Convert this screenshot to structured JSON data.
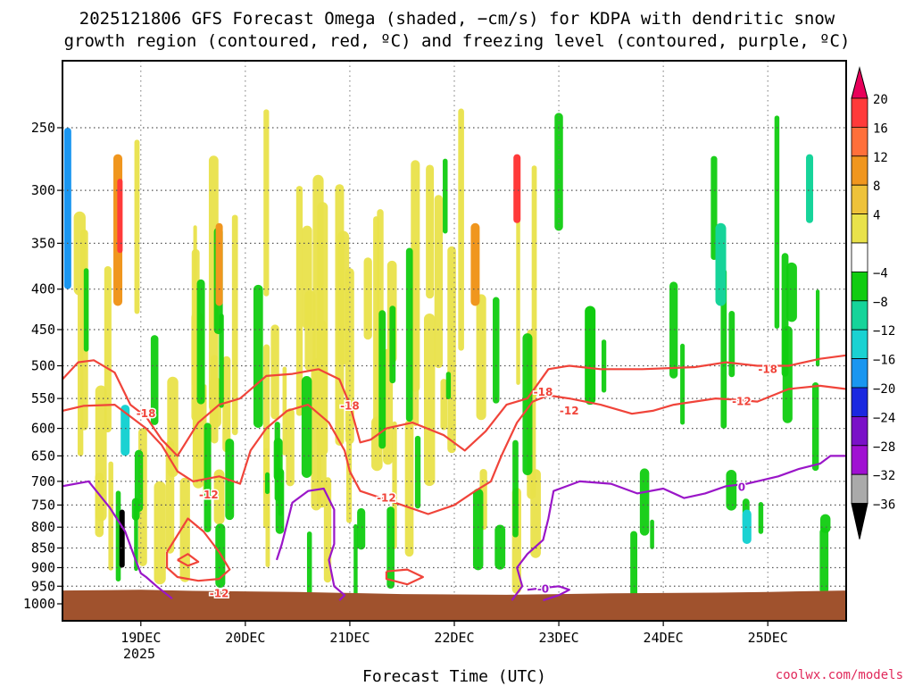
{
  "chart_data": {
    "type": "heatmap",
    "title_line1": "2025121806 GFS Forecast Omega (shaded, −cm/s) for KDPA with dendritic snow",
    "title_line2": "growth region (contoured, red, ºC) and freezing level (contoured, purple, ºC)",
    "xlabel": "Forecast Time (UTC)",
    "ylabel": "",
    "source": "coolwx.com/models",
    "pressure_levels": [
      250,
      300,
      350,
      400,
      450,
      500,
      550,
      600,
      650,
      700,
      750,
      800,
      850,
      900,
      950,
      1000
    ],
    "y_tick_labels": [
      "250",
      "300",
      "350",
      "400",
      "450",
      "500",
      "550",
      "600",
      "650",
      "700",
      "750",
      "800",
      "850",
      "900",
      "950",
      "1000"
    ],
    "ylim": [
      200,
      1025
    ],
    "x_range_days": [
      18.25,
      25.75
    ],
    "x_ticks": [
      {
        "day": 19,
        "label": "19DEC"
      },
      {
        "day": 20,
        "label": "20DEC"
      },
      {
        "day": 21,
        "label": "21DEC"
      },
      {
        "day": 22,
        "label": "22DEC"
      },
      {
        "day": 23,
        "label": "23DEC"
      },
      {
        "day": 24,
        "label": "24DEC"
      },
      {
        "day": 25,
        "label": "25DEC"
      }
    ],
    "x_year_label": "2025",
    "colorbar": {
      "labels": [
        "20",
        "16",
        "12",
        "8",
        "4",
        "−4",
        "−8",
        "−12",
        "−16",
        "−20",
        "−24",
        "−28",
        "−32",
        "−36"
      ],
      "colors": [
        "#e8005a",
        "#ff3a3a",
        "#ff6f3a",
        "#f0961e",
        "#eec23a",
        "#e9e24a",
        "#ffffff",
        "#10cc10",
        "#16d49a",
        "#1ad2d2",
        "#1a96f0",
        "#1a28e0",
        "#7a10c8",
        "#a010d2",
        "#aaaaaa",
        "#000000"
      ]
    },
    "contour_labels": {
      "dgz_warm": "-12",
      "dgz_cold": "-18",
      "freezing": "0",
      "freezing_lower": "-0"
    },
    "contours": {
      "minus18_upper": [
        [
          18.25,
          520
        ],
        [
          18.4,
          495
        ],
        [
          18.55,
          492
        ],
        [
          18.75,
          510
        ],
        [
          18.9,
          560
        ],
        [
          19.05,
          580
        ],
        [
          19.2,
          620
        ],
        [
          19.35,
          650
        ],
        [
          19.55,
          590
        ],
        [
          19.75,
          560
        ],
        [
          19.95,
          550
        ],
        [
          20.2,
          515
        ],
        [
          20.45,
          512
        ],
        [
          20.7,
          505
        ],
        [
          20.9,
          520
        ],
        [
          21.0,
          560
        ],
        [
          21.1,
          625
        ],
        [
          21.2,
          620
        ],
        [
          21.35,
          600
        ],
        [
          21.6,
          590
        ],
        [
          21.9,
          612
        ],
        [
          22.1,
          640
        ],
        [
          22.3,
          605
        ],
        [
          22.5,
          560
        ],
        [
          22.7,
          550
        ],
        [
          22.9,
          505
        ],
        [
          23.1,
          500
        ],
        [
          23.4,
          505
        ],
        [
          23.8,
          505
        ],
        [
          24.3,
          502
        ],
        [
          24.6,
          495
        ],
        [
          24.9,
          500
        ],
        [
          25.2,
          500
        ],
        [
          25.5,
          490
        ],
        [
          25.75,
          485
        ]
      ],
      "minus12_lower": [
        [
          18.25,
          570
        ],
        [
          18.45,
          562
        ],
        [
          18.75,
          560
        ],
        [
          19.05,
          600
        ],
        [
          19.2,
          630
        ],
        [
          19.35,
          680
        ],
        [
          19.5,
          700
        ],
        [
          19.75,
          690
        ],
        [
          19.95,
          705
        ],
        [
          20.05,
          640
        ],
        [
          20.2,
          600
        ],
        [
          20.4,
          570
        ],
        [
          20.6,
          560
        ],
        [
          20.8,
          590
        ],
        [
          20.95,
          640
        ],
        [
          21.0,
          680
        ],
        [
          21.1,
          720
        ],
        [
          21.3,
          735
        ],
        [
          21.5,
          750
        ],
        [
          21.75,
          770
        ],
        [
          22.0,
          750
        ],
        [
          22.2,
          720
        ],
        [
          22.35,
          700
        ],
        [
          22.45,
          650
        ],
        [
          22.6,
          590
        ],
        [
          22.75,
          555
        ],
        [
          22.9,
          545
        ],
        [
          23.1,
          550
        ],
        [
          23.4,
          560
        ],
        [
          23.7,
          575
        ],
        [
          23.9,
          570
        ],
        [
          24.1,
          560
        ],
        [
          24.3,
          555
        ],
        [
          24.5,
          550
        ],
        [
          24.7,
          552
        ],
        [
          24.9,
          555
        ],
        [
          25.2,
          535
        ],
        [
          25.5,
          530
        ],
        [
          25.75,
          535
        ]
      ],
      "minus12_loop": [
        [
          19.25,
          860
        ],
        [
          19.45,
          780
        ],
        [
          19.6,
          810
        ],
        [
          19.75,
          860
        ],
        [
          19.85,
          905
        ],
        [
          19.75,
          930
        ],
        [
          19.55,
          935
        ],
        [
          19.35,
          925
        ],
        [
          19.25,
          900
        ],
        [
          19.25,
          860
        ]
      ],
      "minus12_small_loop": [
        [
          19.35,
          880
        ],
        [
          19.45,
          865
        ],
        [
          19.55,
          885
        ],
        [
          19.45,
          895
        ],
        [
          19.35,
          880
        ]
      ],
      "minus12_small_loop2": [
        [
          21.35,
          910
        ],
        [
          21.55,
          905
        ],
        [
          21.7,
          925
        ],
        [
          21.55,
          945
        ],
        [
          21.35,
          930
        ],
        [
          21.35,
          910
        ]
      ],
      "freezing_main": [
        [
          18.25,
          710
        ],
        [
          18.5,
          700
        ],
        [
          18.7,
          755
        ],
        [
          18.85,
          810
        ],
        [
          18.95,
          880
        ],
        [
          19.0,
          915
        ],
        [
          19.05,
          925
        ],
        [
          19.15,
          950
        ],
        [
          19.3,
          985
        ]
      ],
      "freezing_loop": [
        [
          20.3,
          880
        ],
        [
          20.35,
          840
        ],
        [
          20.45,
          745
        ],
        [
          20.6,
          720
        ],
        [
          20.75,
          715
        ],
        [
          20.85,
          760
        ],
        [
          20.85,
          840
        ],
        [
          20.8,
          880
        ],
        [
          20.85,
          950
        ],
        [
          20.95,
          975
        ],
        [
          20.9,
          990
        ]
      ],
      "freezing_mid": [
        [
          22.55,
          990
        ],
        [
          22.65,
          950
        ],
        [
          22.6,
          900
        ],
        [
          22.7,
          865
        ],
        [
          22.85,
          830
        ],
        [
          22.9,
          780
        ],
        [
          22.95,
          720
        ],
        [
          23.2,
          700
        ],
        [
          23.5,
          705
        ],
        [
          23.75,
          725
        ],
        [
          24.0,
          715
        ],
        [
          24.2,
          735
        ],
        [
          24.4,
          725
        ],
        [
          24.6,
          710
        ],
        [
          24.8,
          705
        ],
        [
          25.1,
          690
        ],
        [
          25.3,
          675
        ],
        [
          25.5,
          665
        ],
        [
          25.6,
          650
        ],
        [
          25.75,
          650
        ]
      ],
      "freezing_low": [
        [
          22.85,
          990
        ],
        [
          23.0,
          975
        ],
        [
          23.1,
          960
        ],
        [
          23.0,
          950
        ],
        [
          22.85,
          955
        ],
        [
          22.7,
          960
        ]
      ]
    }
  }
}
